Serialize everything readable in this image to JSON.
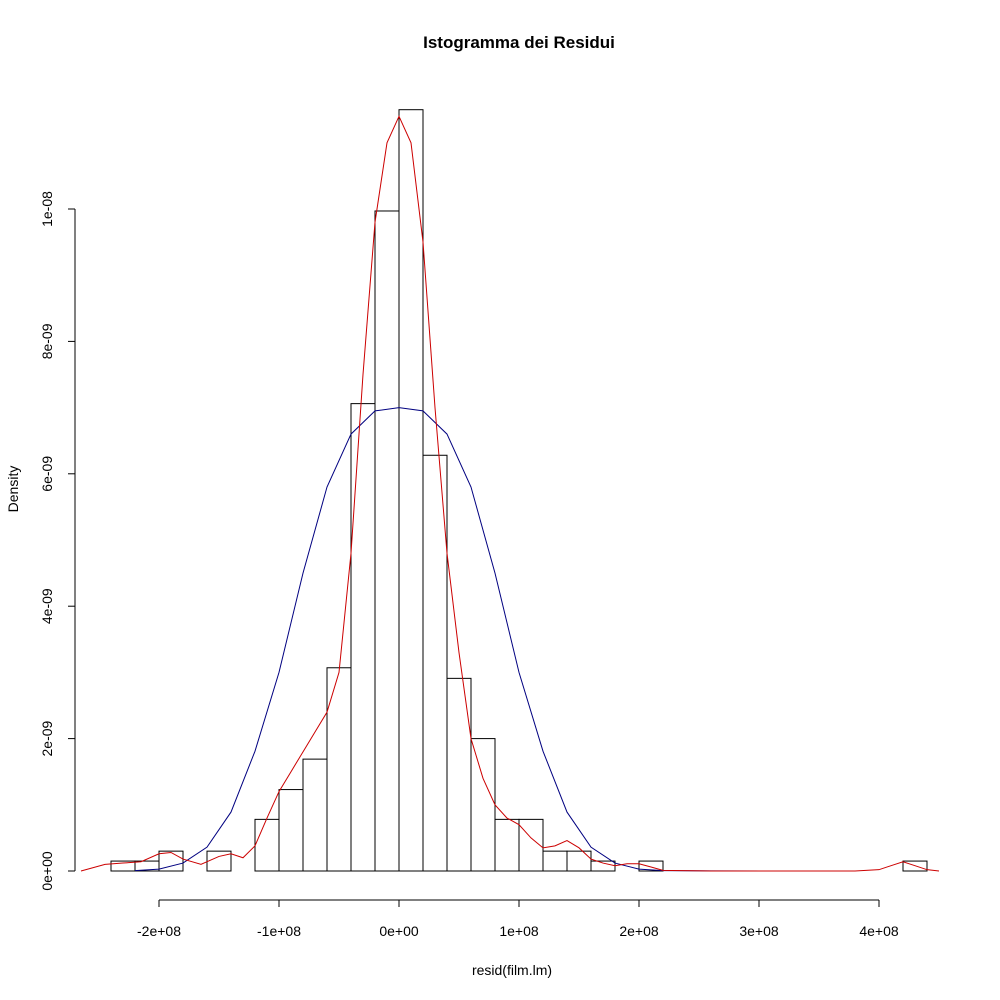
{
  "chart_data": {
    "type": "bar",
    "title": "Istogramma dei Residui",
    "xlabel": "resid(film.lm)",
    "ylabel": "Density",
    "xlim": [
      -265000000,
      450000000
    ],
    "ylim": [
      0,
      1.15e-08
    ],
    "x_ticks": [
      {
        "value": -200000000,
        "label": "-2e+08"
      },
      {
        "value": -100000000,
        "label": "-1e+08"
      },
      {
        "value": 0,
        "label": "0e+00"
      },
      {
        "value": 100000000,
        "label": "1e+08"
      },
      {
        "value": 200000000,
        "label": "2e+08"
      },
      {
        "value": 300000000,
        "label": "3e+08"
      },
      {
        "value": 400000000,
        "label": "4e+08"
      }
    ],
    "y_ticks": [
      {
        "value": 0,
        "label": "0e+00"
      },
      {
        "value": 2e-09,
        "label": "2e-09"
      },
      {
        "value": 4e-09,
        "label": "4e-09"
      },
      {
        "value": 6e-09,
        "label": "6e-09"
      },
      {
        "value": 8e-09,
        "label": "8e-09"
      },
      {
        "value": 1e-08,
        "label": "1e-08"
      }
    ],
    "grid": false,
    "bin_width": 20000000,
    "bins": [
      {
        "start": -240000000,
        "density": 1.5e-10
      },
      {
        "start": -220000000,
        "density": 1.5e-10
      },
      {
        "start": -200000000,
        "density": 3e-10
      },
      {
        "start": -180000000,
        "density": 0.0
      },
      {
        "start": -160000000,
        "density": 3e-10
      },
      {
        "start": -140000000,
        "density": 0.0
      },
      {
        "start": -120000000,
        "density": 7.8e-10
      },
      {
        "start": -100000000,
        "density": 1.23e-09
      },
      {
        "start": -80000000,
        "density": 1.69e-09
      },
      {
        "start": -60000000,
        "density": 3.07e-09
      },
      {
        "start": -40000000,
        "density": 7.06e-09
      },
      {
        "start": -20000000,
        "density": 9.97e-09
      },
      {
        "start": 0,
        "density": 1.15e-08
      },
      {
        "start": 20000000,
        "density": 6.28e-09
      },
      {
        "start": 40000000,
        "density": 2.91e-09
      },
      {
        "start": 60000000,
        "density": 2e-09
      },
      {
        "start": 80000000,
        "density": 7.8e-10
      },
      {
        "start": 100000000,
        "density": 7.8e-10
      },
      {
        "start": 120000000,
        "density": 3e-10
      },
      {
        "start": 140000000,
        "density": 3e-10
      },
      {
        "start": 160000000,
        "density": 1.5e-10
      },
      {
        "start": 180000000,
        "density": 0.0
      },
      {
        "start": 200000000,
        "density": 1.5e-10
      },
      {
        "start": 420000000,
        "density": 1.5e-10
      }
    ],
    "series": [
      {
        "color": "#000080",
        "x": [
          -220000000,
          -200000000,
          -180000000,
          -160000000,
          -140000000,
          -120000000,
          -100000000,
          -80000000,
          -60000000,
          -40000000,
          -20000000,
          0,
          20000000,
          40000000,
          60000000,
          80000000,
          100000000,
          120000000,
          140000000,
          160000000,
          180000000,
          200000000,
          220000000,
          260000000,
          310000000
        ],
        "y": [
          5e-12,
          2.8e-11,
          1.2e-10,
          3.6e-10,
          8.9e-10,
          1.81e-09,
          3e-09,
          4.5e-09,
          5.8e-09,
          6.6e-09,
          6.95e-09,
          7e-09,
          6.95e-09,
          6.6e-09,
          5.8e-09,
          4.5e-09,
          3e-09,
          1.81e-09,
          8.9e-10,
          3.6e-10,
          1.2e-10,
          2.8e-11,
          5e-12,
          1e-12,
          0
        ]
      },
      {
        "color": "#cc0000",
        "x": [
          -265000000,
          -245000000,
          -230000000,
          -215000000,
          -200000000,
          -190000000,
          -180000000,
          -165000000,
          -150000000,
          -140000000,
          -130000000,
          -120000000,
          -110000000,
          -100000000,
          -90000000,
          -80000000,
          -70000000,
          -60000000,
          -50000000,
          -40000000,
          -30000000,
          -20000000,
          -10000000,
          0,
          10000000,
          20000000,
          30000000,
          40000000,
          50000000,
          60000000,
          70000000,
          80000000,
          90000000,
          100000000,
          110000000,
          120000000,
          130000000,
          140000000,
          150000000,
          160000000,
          170000000,
          180000000,
          190000000,
          200000000,
          210000000,
          220000000,
          260000000,
          300000000,
          350000000,
          380000000,
          400000000,
          410000000,
          420000000,
          430000000,
          440000000,
          450000000
        ],
        "y": [
          0,
          1e-10,
          1.2e-10,
          1.4e-10,
          2.6e-10,
          2.8e-10,
          1.8e-10,
          1e-10,
          2.2e-10,
          2.6e-10,
          2e-10,
          3.8e-10,
          8e-10,
          1.2e-09,
          1.5e-09,
          1.8e-09,
          2.1e-09,
          2.4e-09,
          3e-09,
          4.8e-09,
          7.5e-09,
          9.8e-09,
          1.1e-08,
          1.14e-08,
          1.1e-08,
          9.5e-09,
          7e-09,
          4.8e-09,
          3.3e-09,
          2e-09,
          1.4e-09,
          1e-09,
          8e-10,
          7e-10,
          5e-10,
          3.5e-10,
          3.8e-10,
          4.6e-10,
          3.5e-10,
          1.8e-10,
          1.2e-10,
          8e-11,
          1.1e-10,
          1.1e-10,
          6e-11,
          1e-11,
          0,
          0,
          0,
          0,
          2e-11,
          8e-11,
          1.4e-10,
          8e-11,
          2e-11,
          0
        ]
      }
    ]
  }
}
